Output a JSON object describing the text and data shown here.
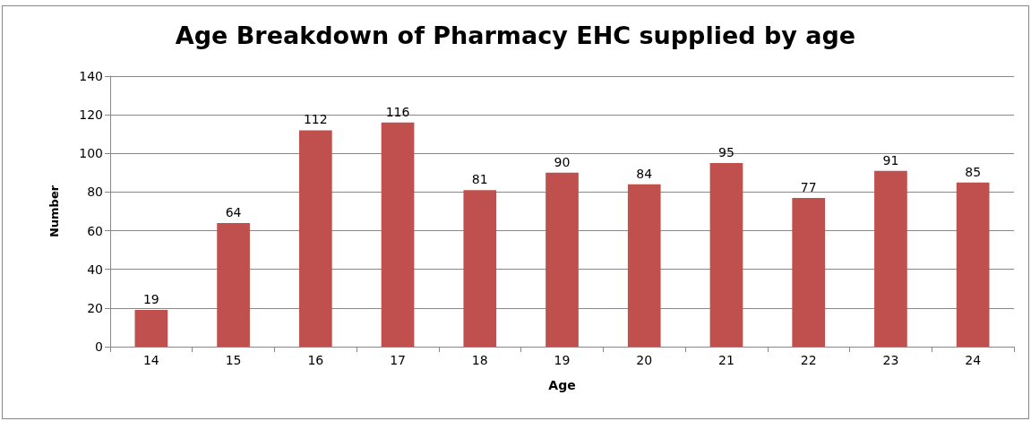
{
  "chart_data": {
    "type": "bar",
    "title": "Age Breakdown of Pharmacy EHC supplied by age",
    "xlabel": "Age",
    "ylabel": "Number",
    "categories": [
      "14",
      "15",
      "16",
      "17",
      "18",
      "19",
      "20",
      "21",
      "22",
      "23",
      "24"
    ],
    "values": [
      19,
      64,
      112,
      116,
      81,
      90,
      84,
      95,
      77,
      91,
      85
    ],
    "color": "#c0504d",
    "ylim": [
      0,
      140
    ],
    "yticks": [
      0,
      20,
      40,
      60,
      80,
      100,
      120,
      140
    ],
    "grid": "y",
    "data_labels": true
  }
}
